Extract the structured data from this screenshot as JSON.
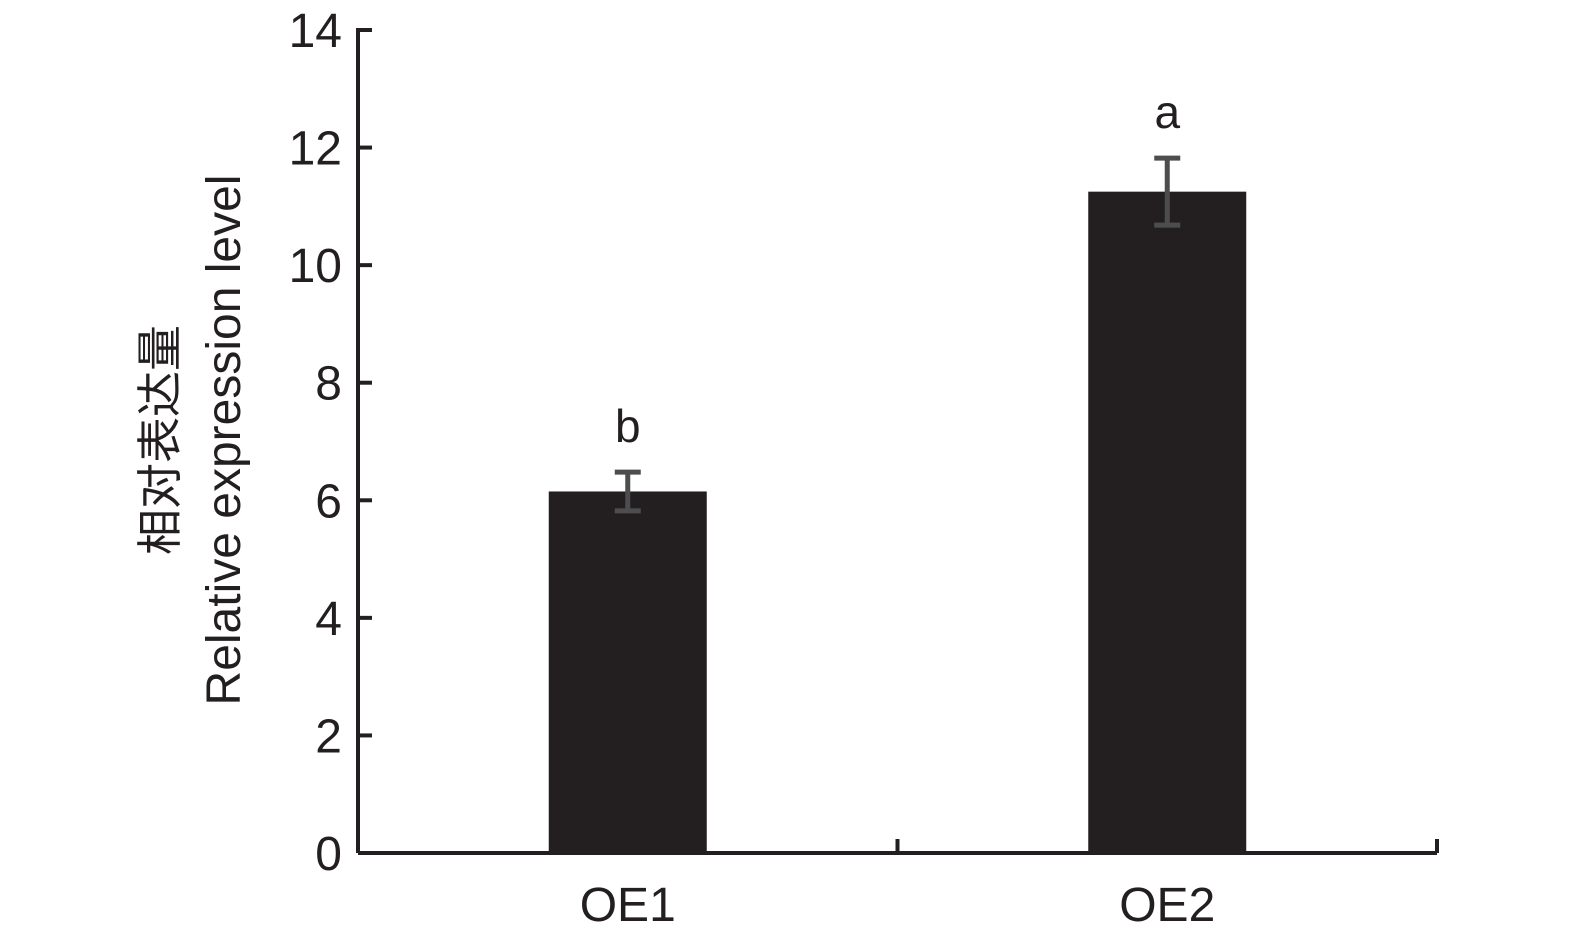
{
  "chart_data": {
    "type": "bar",
    "categories": [
      "OE1",
      "OE2"
    ],
    "values": [
      6.15,
      11.25
    ],
    "errors": [
      0.33,
      0.57
    ],
    "significance_labels": [
      "b",
      "a"
    ],
    "ylabel_cn": "相对表达量",
    "ylabel": "Relative expression level",
    "xlabel": "",
    "title": "",
    "ylim": [
      0,
      14
    ],
    "yticks": [
      0,
      2,
      4,
      6,
      8,
      10,
      12,
      14
    ],
    "ytick_labels": [
      "0",
      "2",
      "4",
      "6",
      "8",
      "10",
      "12",
      "14"
    ],
    "grid": false,
    "legend": "none",
    "colors": {
      "bar": "#231f20",
      "error_bar": "#4d4d4f",
      "axis": "#231f20",
      "text": "#231f20"
    }
  }
}
